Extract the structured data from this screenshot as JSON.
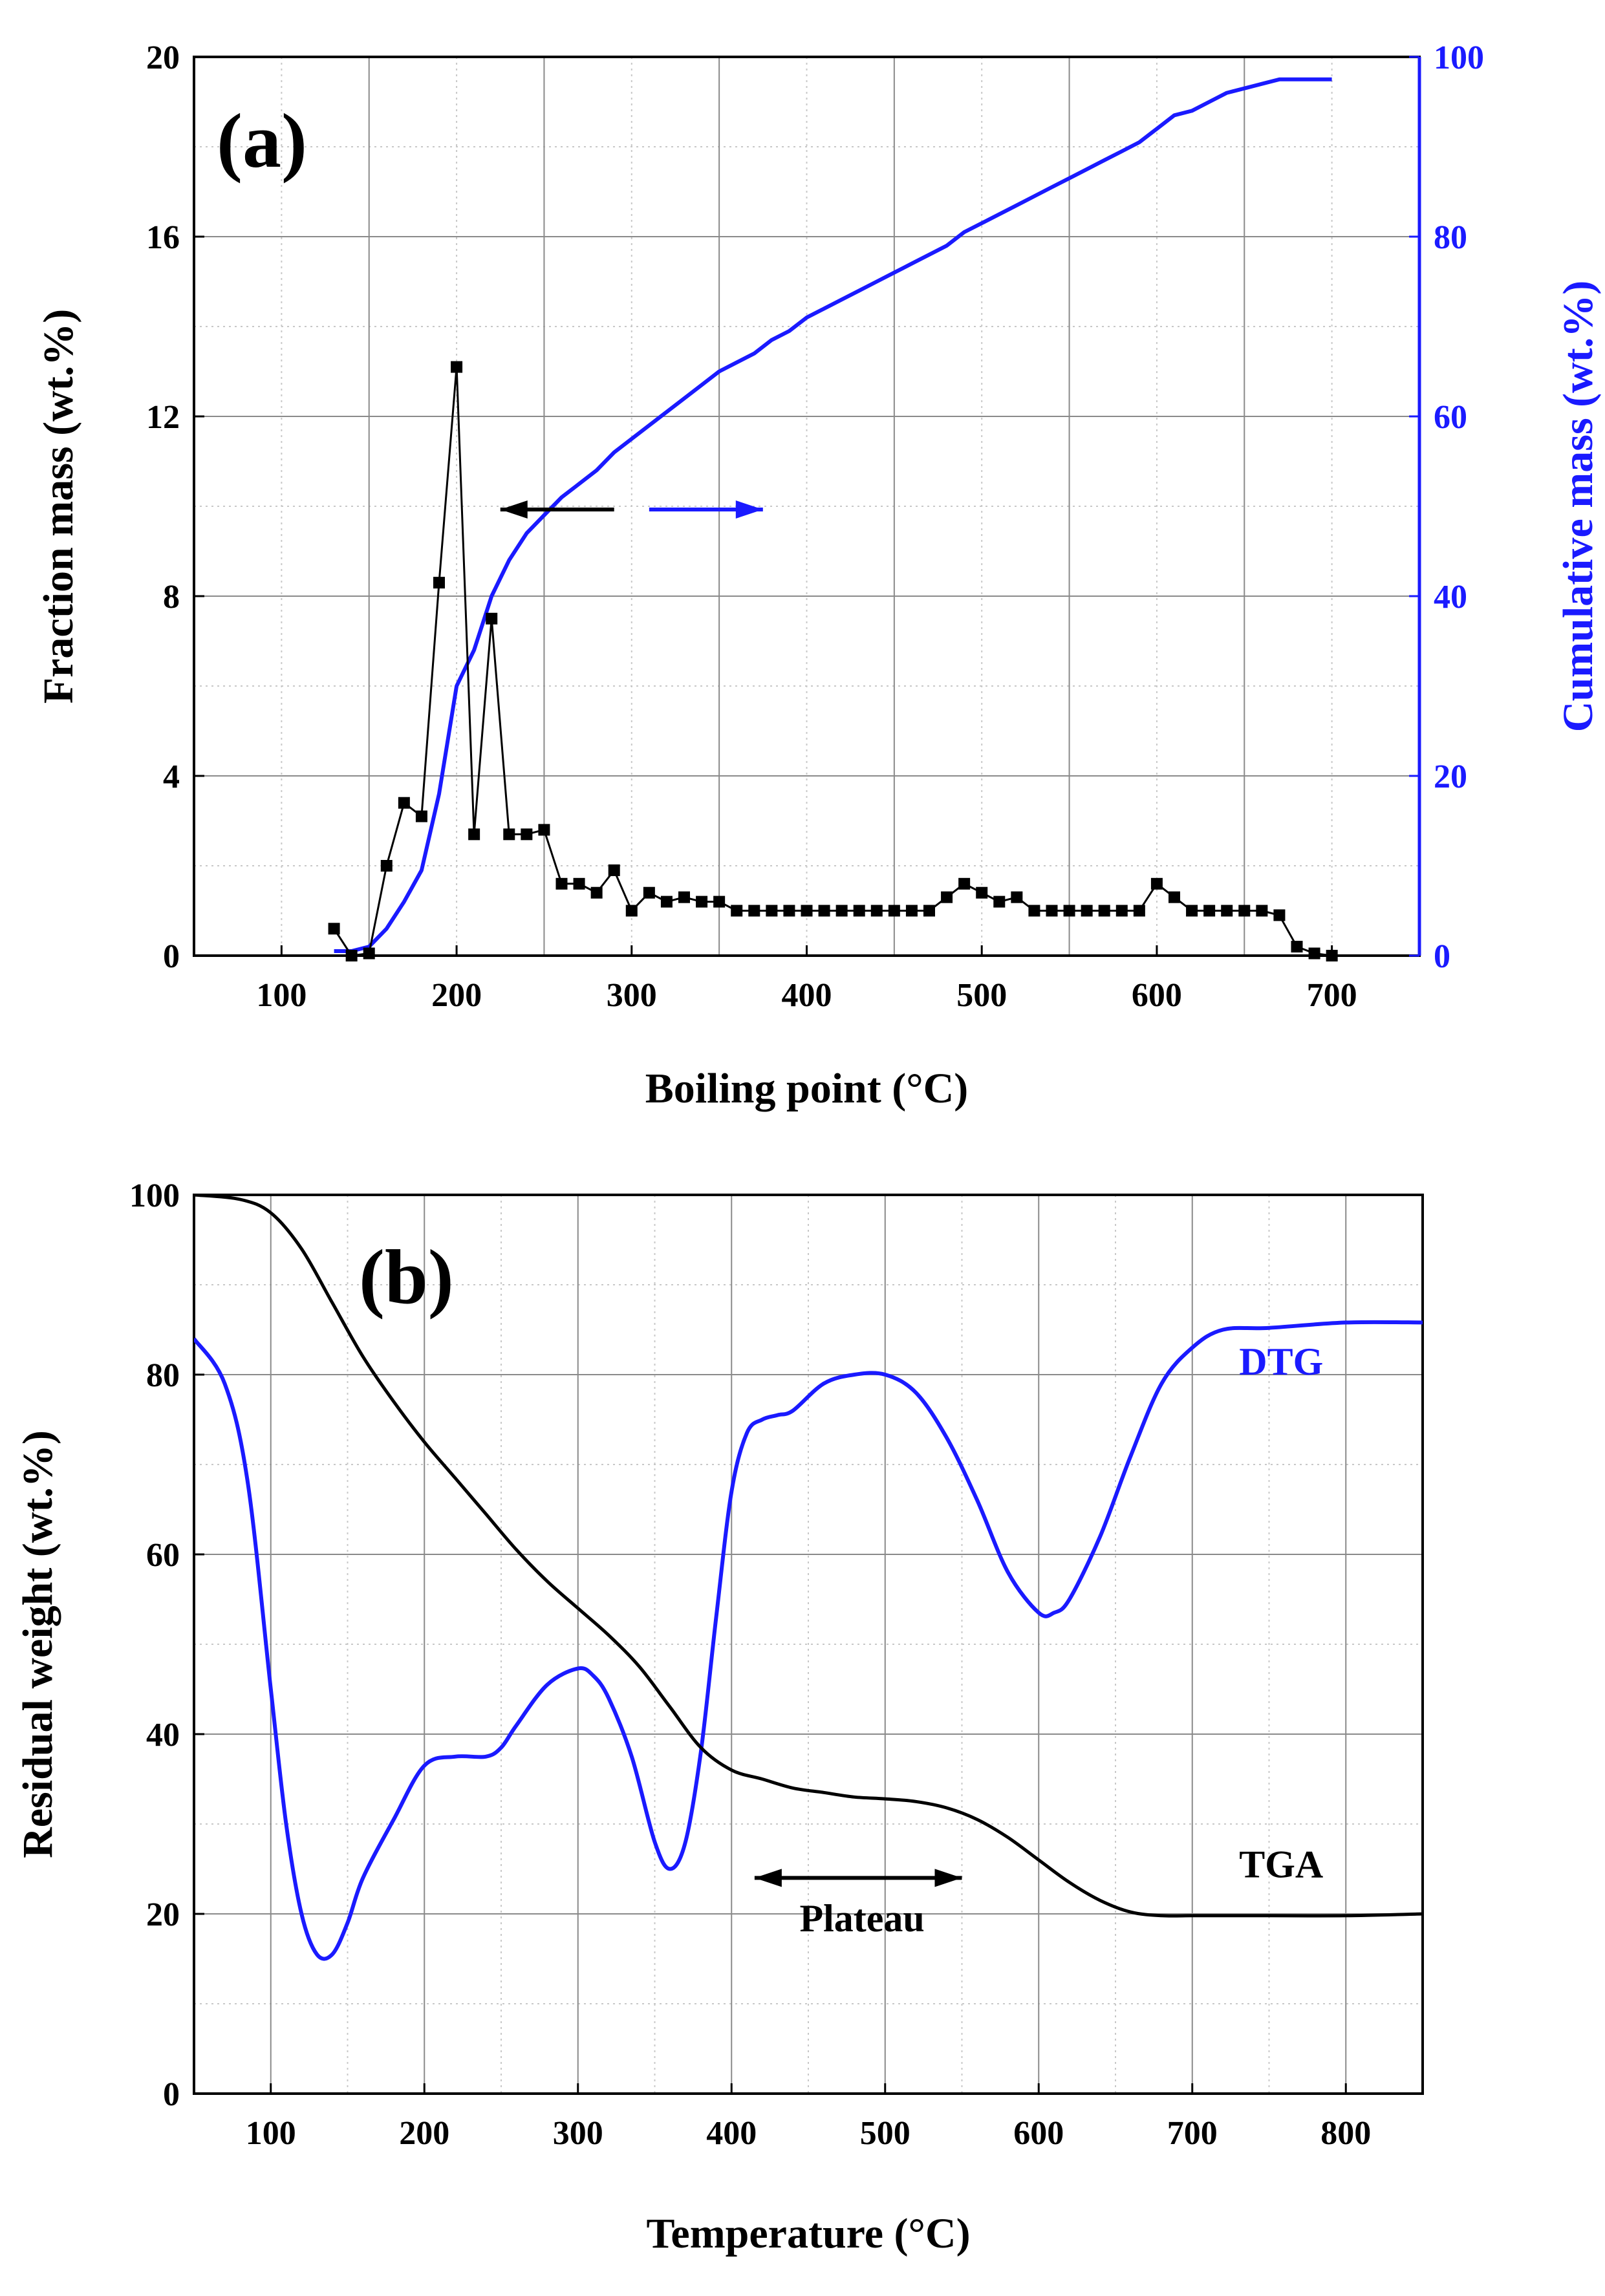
{
  "chart_data": [
    {
      "type": "line",
      "panel_label": "(a)",
      "xlabel": "Boiling point (°C)",
      "ylabel": "Fraction mass (wt.%)",
      "y2label": "Cumulative mass (wt.%)",
      "xlim": [
        50,
        750
      ],
      "ylim": [
        0,
        20
      ],
      "y2lim": [
        0,
        100
      ],
      "xticks": [
        100,
        200,
        300,
        400,
        500,
        600,
        700
      ],
      "yticks": [
        0,
        4,
        8,
        12,
        16,
        20
      ],
      "y2ticks": [
        0,
        20,
        40,
        60,
        80,
        100
      ],
      "grid": true,
      "colors": {
        "fraction": "#000000",
        "cumulative": "#1a1aff",
        "axis2": "#1a1aff"
      },
      "series": [
        {
          "name": "Fraction mass",
          "axis": "left",
          "markers": true,
          "x": [
            130,
            140,
            150,
            160,
            170,
            180,
            190,
            200,
            210,
            220,
            230,
            240,
            250,
            260,
            270,
            280,
            290,
            300,
            310,
            320,
            330,
            340,
            350,
            360,
            370,
            380,
            390,
            400,
            410,
            420,
            430,
            440,
            450,
            460,
            470,
            480,
            490,
            500,
            510,
            520,
            530,
            540,
            550,
            560,
            570,
            580,
            590,
            600,
            610,
            620,
            630,
            640,
            650,
            660,
            670,
            680,
            690,
            700
          ],
          "y": [
            0.6,
            0,
            0.05,
            2.0,
            3.4,
            3.1,
            8.3,
            13.1,
            2.7,
            7.5,
            2.7,
            2.7,
            2.8,
            1.6,
            1.6,
            1.4,
            1.9,
            1.0,
            1.4,
            1.2,
            1.3,
            1.2,
            1.2,
            1.0,
            1.0,
            1.0,
            1.0,
            1.0,
            1.0,
            1.0,
            1.0,
            1.0,
            1.0,
            1.0,
            1.0,
            1.3,
            1.6,
            1.4,
            1.2,
            1.3,
            1.0,
            1.0,
            1.0,
            1.0,
            1.0,
            1.0,
            1.0,
            1.6,
            1.3,
            1.0,
            1.0,
            1.0,
            1.0,
            1.0,
            0.9,
            0.2,
            0.05,
            0
          ]
        },
        {
          "name": "Cumulative mass",
          "axis": "right",
          "markers": false,
          "x": [
            130,
            140,
            150,
            160,
            170,
            180,
            190,
            200,
            210,
            220,
            230,
            240,
            250,
            260,
            270,
            280,
            290,
            300,
            310,
            320,
            330,
            340,
            350,
            360,
            370,
            380,
            390,
            400,
            410,
            420,
            430,
            440,
            450,
            460,
            470,
            480,
            490,
            500,
            510,
            520,
            530,
            540,
            550,
            560,
            570,
            580,
            590,
            600,
            610,
            620,
            630,
            640,
            650,
            660,
            670,
            680,
            690,
            700
          ],
          "y": [
            0.5,
            0.5,
            1.0,
            3.0,
            6.0,
            9.5,
            18.0,
            30.0,
            34.0,
            40.0,
            44.0,
            47.0,
            49.0,
            51.0,
            52.5,
            54.0,
            56.0,
            57.5,
            59.0,
            60.5,
            62.0,
            63.5,
            65.0,
            66.0,
            67.0,
            68.5,
            69.5,
            71.0,
            72.0,
            73.0,
            74.0,
            75.0,
            76.0,
            77.0,
            78.0,
            79.0,
            80.5,
            81.5,
            82.5,
            83.5,
            84.5,
            85.5,
            86.5,
            87.5,
            88.5,
            89.5,
            90.5,
            92.0,
            93.5,
            94.0,
            95.0,
            96.0,
            96.5,
            97.0,
            97.5,
            97.5,
            97.5,
            97.5
          ]
        }
      ],
      "arrows": [
        {
          "direction": "left",
          "color": "#000000",
          "x_from": 290,
          "x_to": 225,
          "y": 10
        },
        {
          "direction": "right",
          "color": "#1a1aff",
          "x_from": 310,
          "x_to": 375,
          "y": 10
        }
      ]
    },
    {
      "type": "line",
      "panel_label": "(b)",
      "xlabel": "Temperature (°C)",
      "ylabel": "Residual weight (wt.%)",
      "xlim": [
        50,
        850
      ],
      "ylim": [
        0,
        100
      ],
      "xticks": [
        100,
        200,
        300,
        400,
        500,
        600,
        700,
        800
      ],
      "yticks": [
        0,
        20,
        40,
        60,
        80,
        100
      ],
      "grid": true,
      "colors": {
        "tga": "#000000",
        "dtg": "#1a1aff"
      },
      "series": [
        {
          "name": "TGA",
          "label": "TGA",
          "x": [
            50,
            80,
            100,
            120,
            140,
            160,
            180,
            200,
            220,
            240,
            260,
            280,
            300,
            320,
            340,
            360,
            380,
            400,
            420,
            440,
            460,
            480,
            500,
            520,
            540,
            560,
            580,
            600,
            620,
            640,
            660,
            680,
            700,
            720,
            750,
            800,
            850
          ],
          "y": [
            100,
            99.5,
            98,
            94,
            88,
            82,
            77,
            72.5,
            68.5,
            64.5,
            60.5,
            57,
            54,
            51,
            47.5,
            43,
            38.5,
            36,
            35,
            34,
            33.5,
            33,
            32.8,
            32.5,
            31.8,
            30.5,
            28.5,
            26,
            23.5,
            21.5,
            20.2,
            19.8,
            19.8,
            19.8,
            19.8,
            19.8,
            20
          ]
        },
        {
          "name": "DTG",
          "label": "DTG",
          "x": [
            50,
            70,
            85,
            100,
            110,
            120,
            130,
            140,
            150,
            160,
            180,
            200,
            220,
            240,
            250,
            260,
            280,
            300,
            310,
            320,
            335,
            350,
            360,
            370,
            380,
            390,
            400,
            410,
            420,
            430,
            440,
            460,
            480,
            500,
            520,
            540,
            560,
            580,
            600,
            610,
            620,
            640,
            660,
            680,
            700,
            720,
            750,
            800,
            850
          ],
          "y": [
            84,
            79,
            68,
            45,
            30,
            20,
            15.5,
            15.5,
            19,
            24,
            30.5,
            36.5,
            37.5,
            37.5,
            38.5,
            41,
            45.5,
            47.3,
            46.5,
            44,
            37.5,
            28,
            25,
            28,
            38,
            53,
            67,
            73.5,
            75,
            75.5,
            76,
            79,
            80,
            80,
            78,
            73,
            66,
            58,
            53.5,
            53.5,
            55,
            62,
            71,
            79,
            83,
            85,
            85.2,
            85.8,
            85.8
          ]
        }
      ],
      "annotations": [
        {
          "text": "Plateau",
          "arrow_x_from": 415,
          "arrow_x_to": 550,
          "arrow_y": 24,
          "text_x": 485,
          "text_y": 19.5
        }
      ]
    }
  ]
}
